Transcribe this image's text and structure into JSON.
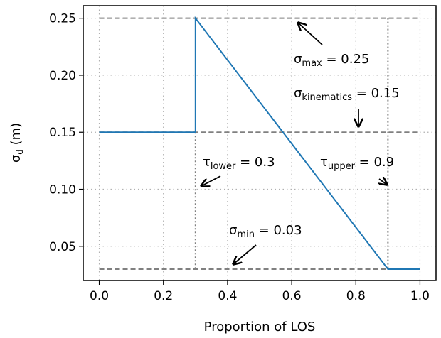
{
  "chart_data": {
    "type": "line",
    "title": "",
    "xlabel": "Proportion of LOS",
    "ylabel": "σ_d (m)",
    "ylabel_main": "σ",
    "ylabel_sub": "d",
    "ylabel_rest": " (m)",
    "xlim": [
      -0.05,
      1.05
    ],
    "ylim": [
      0.02,
      0.261
    ],
    "grid": true,
    "xticks": [
      0.0,
      0.2,
      0.4,
      0.6,
      0.8,
      1.0
    ],
    "xtick_labels": [
      "0.0",
      "0.2",
      "0.4",
      "0.6",
      "0.8",
      "1.0"
    ],
    "yticks": [
      0.05,
      0.1,
      0.15,
      0.2,
      0.25
    ],
    "ytick_labels": [
      "0.05",
      "0.10",
      "0.15",
      "0.20",
      "0.25"
    ],
    "series": [
      {
        "color": "#1f77b4",
        "x": [
          0.0,
          0.3,
          0.3,
          0.9,
          1.0
        ],
        "y": [
          0.15,
          0.15,
          0.25,
          0.03,
          0.03
        ]
      }
    ],
    "reference_lines": {
      "horizontal": [
        0.25,
        0.15,
        0.03
      ],
      "vertical": [
        {
          "x": 0.3,
          "from": 0.03,
          "to": 0.15
        },
        {
          "x": 0.9,
          "from": 0.03,
          "to": 0.25
        }
      ],
      "color": "#808080"
    },
    "annotations": [
      {
        "main": "σ",
        "sub": "max",
        "rest": " = 0.25"
      },
      {
        "main": "σ",
        "sub": "kinematics",
        "rest": " = 0.15"
      },
      {
        "main": "τ",
        "sub": "lower",
        "rest": " = 0.3"
      },
      {
        "main": "τ",
        "sub": "upper",
        "rest": " = 0.9"
      },
      {
        "main": "σ",
        "sub": "min",
        "rest": " = 0.03"
      }
    ]
  }
}
